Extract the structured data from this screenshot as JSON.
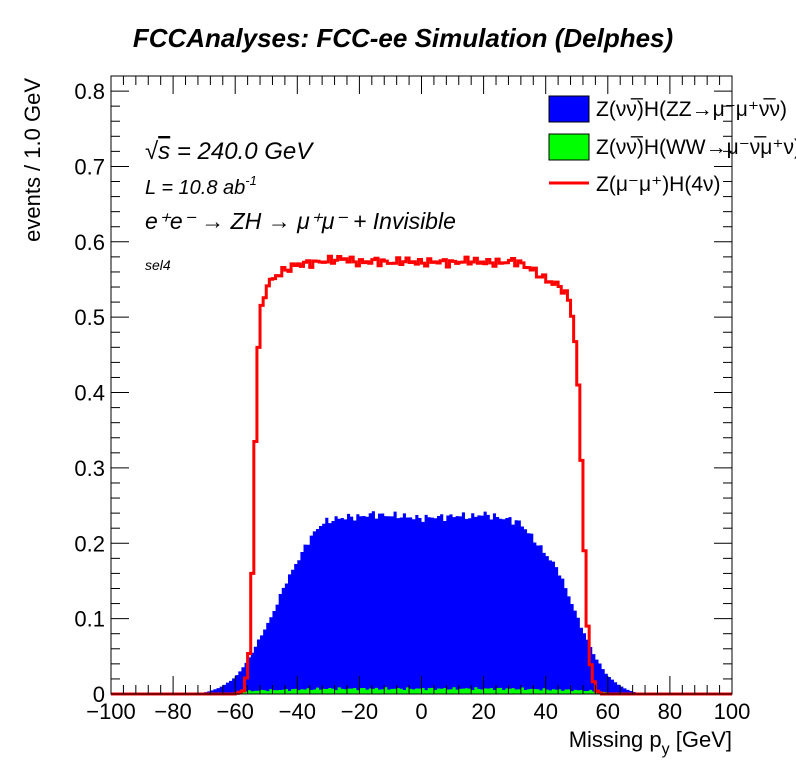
{
  "chart_data": {
    "type": "histogram",
    "title": "FCCAnalyses: FCC-ee Simulation (Delphes)",
    "xlabel_main": "Missing p",
    "xlabel_sub": "y",
    "xlabel_unit": " [GeV]",
    "ylabel": "events / 1.0 GeV",
    "xlim": [
      -100,
      100
    ],
    "ylim": [
      0,
      0.82
    ],
    "x_ticks": [
      -100,
      -80,
      -60,
      -40,
      -20,
      0,
      20,
      40,
      60,
      80,
      100
    ],
    "x_tick_labels": [
      "−100",
      "−80",
      "−60",
      "−40",
      "−20",
      "0",
      "20",
      "40",
      "60",
      "80",
      "100"
    ],
    "y_ticks": [
      0,
      0.1,
      0.2,
      0.3,
      0.4,
      0.5,
      0.6,
      0.7,
      0.8
    ],
    "y_tick_labels": [
      "0",
      "0.1",
      "0.2",
      "0.3",
      "0.4",
      "0.5",
      "0.6",
      "0.7",
      "0.8"
    ],
    "grid": false,
    "legend_position": "top-right",
    "annotations": {
      "sqrt_s": "240.0 GeV",
      "lumi_main": "L = 10.8 ab",
      "lumi_exp": "-1",
      "process": "e⁺e⁻ → ZH → μ⁺μ⁻ + Invisible",
      "selection": "sel4"
    },
    "series": [
      {
        "name": "Z(νν̅)H(ZZ→μ⁻μ⁺ν̅ν)",
        "style": "stacked-fill",
        "color": "#0000ff",
        "points": [
          [
            -72,
            0.0
          ],
          [
            -68,
            0.004
          ],
          [
            -64,
            0.01
          ],
          [
            -60,
            0.02
          ],
          [
            -56,
            0.04
          ],
          [
            -52,
            0.07
          ],
          [
            -48,
            0.1
          ],
          [
            -44,
            0.14
          ],
          [
            -40,
            0.17
          ],
          [
            -36,
            0.2
          ],
          [
            -32,
            0.22
          ],
          [
            -28,
            0.225
          ],
          [
            -24,
            0.228
          ],
          [
            -20,
            0.228
          ],
          [
            -16,
            0.232
          ],
          [
            -12,
            0.23
          ],
          [
            -8,
            0.23
          ],
          [
            -4,
            0.228
          ],
          [
            0,
            0.226
          ],
          [
            4,
            0.228
          ],
          [
            8,
            0.228
          ],
          [
            12,
            0.23
          ],
          [
            16,
            0.228
          ],
          [
            20,
            0.232
          ],
          [
            24,
            0.228
          ],
          [
            28,
            0.225
          ],
          [
            32,
            0.22
          ],
          [
            36,
            0.2
          ],
          [
            40,
            0.18
          ],
          [
            44,
            0.16
          ],
          [
            48,
            0.12
          ],
          [
            52,
            0.08
          ],
          [
            56,
            0.045
          ],
          [
            60,
            0.022
          ],
          [
            64,
            0.01
          ],
          [
            68,
            0.003
          ],
          [
            72,
            0.0
          ]
        ]
      },
      {
        "name": "Z(νν̅)H(WW→μ⁻ν̅μ⁺ν)",
        "style": "stacked-fill",
        "color": "#00ff00",
        "points": [
          [
            -66,
            0.0
          ],
          [
            -60,
            0.002
          ],
          [
            -56,
            0.004
          ],
          [
            -50,
            0.005
          ],
          [
            -40,
            0.006
          ],
          [
            -30,
            0.007
          ],
          [
            -20,
            0.007
          ],
          [
            -10,
            0.007
          ],
          [
            0,
            0.007
          ],
          [
            10,
            0.007
          ],
          [
            20,
            0.007
          ],
          [
            30,
            0.007
          ],
          [
            40,
            0.006
          ],
          [
            50,
            0.005
          ],
          [
            56,
            0.004
          ],
          [
            60,
            0.002
          ],
          [
            66,
            0.0
          ]
        ]
      },
      {
        "name": "Z(μ⁻μ⁺)H(4ν)",
        "style": "line",
        "color": "#ff0000",
        "points": [
          [
            -100,
            0.0
          ],
          [
            -60,
            0.0
          ],
          [
            -57,
            0.005
          ],
          [
            -55,
            0.07
          ],
          [
            -54,
            0.25
          ],
          [
            -53,
            0.42
          ],
          [
            -52,
            0.5
          ],
          [
            -50,
            0.54
          ],
          [
            -48,
            0.55
          ],
          [
            -45,
            0.56
          ],
          [
            -40,
            0.57
          ],
          [
            -35,
            0.572
          ],
          [
            -30,
            0.575
          ],
          [
            -25,
            0.578
          ],
          [
            -20,
            0.572
          ],
          [
            -15,
            0.575
          ],
          [
            -10,
            0.572
          ],
          [
            -5,
            0.575
          ],
          [
            0,
            0.572
          ],
          [
            5,
            0.574
          ],
          [
            10,
            0.572
          ],
          [
            15,
            0.575
          ],
          [
            20,
            0.573
          ],
          [
            25,
            0.572
          ],
          [
            30,
            0.575
          ],
          [
            35,
            0.565
          ],
          [
            40,
            0.55
          ],
          [
            45,
            0.54
          ],
          [
            48,
            0.52
          ],
          [
            50,
            0.45
          ],
          [
            51,
            0.37
          ],
          [
            52,
            0.25
          ],
          [
            53,
            0.13
          ],
          [
            54,
            0.05
          ],
          [
            56,
            0.005
          ],
          [
            58,
            0.0
          ],
          [
            100,
            0.0
          ]
        ]
      }
    ]
  }
}
